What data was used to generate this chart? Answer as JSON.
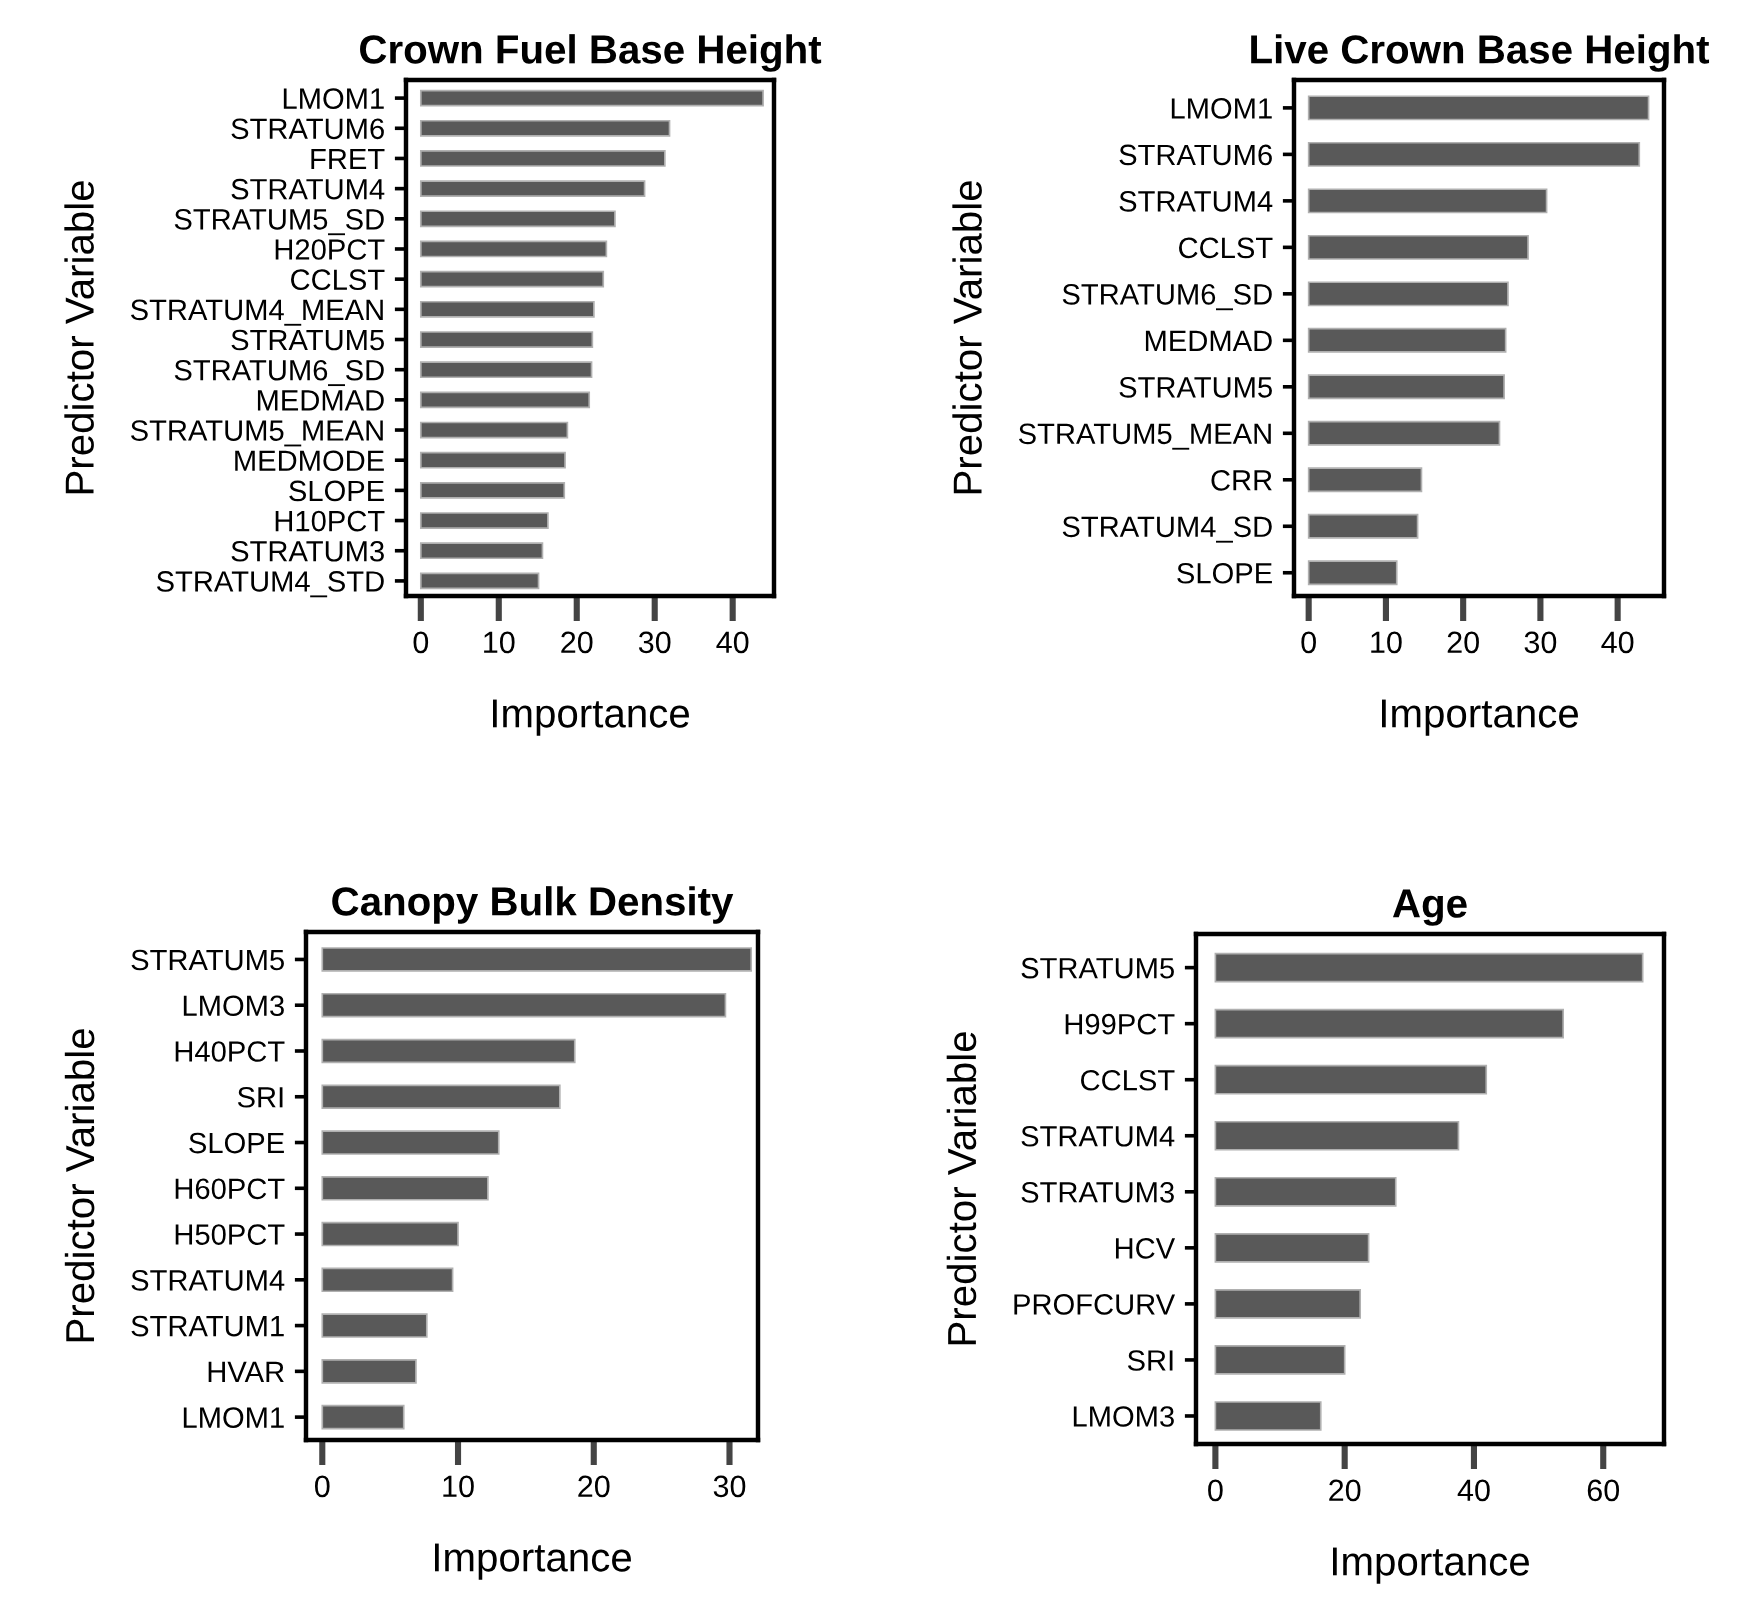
{
  "chart_data": [
    {
      "type": "bar",
      "orientation": "horizontal",
      "title": "Crown Fuel Base Height",
      "xlabel": "Importance",
      "ylabel": "Predictor Variable",
      "categories": [
        "LMOM1",
        "STRATUM6",
        "FRET",
        "STRATUM4",
        "STRATUM5_SD",
        "H20PCT",
        "CCLST",
        "STRATUM4_MEAN",
        "STRATUM5",
        "STRATUM6_SD",
        "MEDMAD",
        "STRATUM5_MEAN",
        "MEDMODE",
        "SLOPE",
        "H10PCT",
        "STRATUM3",
        "STRATUM4_STD"
      ],
      "values": [
        43.9,
        31.9,
        31.3,
        28.7,
        24.9,
        23.8,
        23.4,
        22.2,
        22.0,
        21.9,
        21.6,
        18.8,
        18.5,
        18.4,
        16.3,
        15.6,
        15.1
      ],
      "color": "#595959",
      "xlim": [
        -1.9,
        45.3
      ],
      "xticks": [
        0,
        10,
        20,
        30,
        40
      ],
      "grid": false,
      "legend": false
    },
    {
      "type": "bar",
      "orientation": "horizontal",
      "title": "Live Crown Base Height",
      "xlabel": "Importance",
      "ylabel": "Predictor Variable",
      "categories": [
        "LMOM1",
        "STRATUM6",
        "STRATUM4",
        "CCLST",
        "STRATUM6_SD",
        "MEDMAD",
        "STRATUM5",
        "STRATUM5_MEAN",
        "CRR",
        "STRATUM4_SD",
        "SLOPE"
      ],
      "values": [
        44.0,
        42.8,
        30.8,
        28.4,
        25.8,
        25.5,
        25.3,
        24.7,
        14.6,
        14.1,
        11.4
      ],
      "color": "#595959",
      "xlim": [
        -1.9,
        46
      ],
      "xticks": [
        0,
        10,
        20,
        30,
        40
      ],
      "grid": false,
      "legend": false
    },
    {
      "type": "bar",
      "orientation": "horizontal",
      "title": "Canopy Bulk Density",
      "xlabel": "Importance",
      "ylabel": "Predictor Variable",
      "categories": [
        "STRATUM5",
        "LMOM3",
        "H40PCT",
        "SRI",
        "SLOPE",
        "H60PCT",
        "H50PCT",
        "STRATUM4",
        "STRATUM1",
        "HVAR",
        "LMOM1"
      ],
      "values": [
        31.6,
        29.7,
        18.6,
        17.5,
        13.0,
        12.2,
        10.0,
        9.6,
        7.7,
        6.9,
        6.0
      ],
      "color": "#595959",
      "xlim": [
        -1.2,
        32.1
      ],
      "xticks": [
        0,
        10,
        20,
        30
      ],
      "grid": false,
      "legend": false
    },
    {
      "type": "bar",
      "orientation": "horizontal",
      "title": "Age",
      "xlabel": "Importance",
      "ylabel": "Predictor Variable",
      "categories": [
        "STRATUM5",
        "H99PCT",
        "CCLST",
        "STRATUM4",
        "STRATUM3",
        "HCV",
        "PROFCURV",
        "SRI",
        "LMOM3"
      ],
      "values": [
        66.1,
        53.8,
        41.9,
        37.6,
        27.9,
        23.7,
        22.4,
        20.0,
        16.3
      ],
      "color": "#595959",
      "xlim": [
        -3.0,
        69.4
      ],
      "xticks": [
        0,
        20,
        40,
        60
      ],
      "grid": false,
      "legend": false
    }
  ]
}
